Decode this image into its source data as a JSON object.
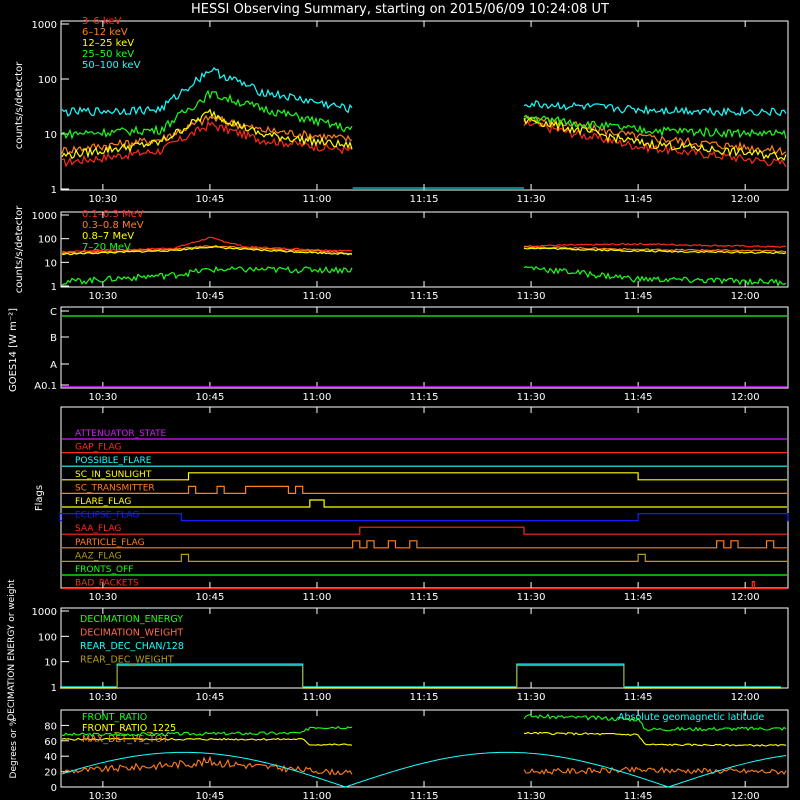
{
  "title": "HESSI Observing Summary, starting on 2015/06/09 10:24:08 UT",
  "colors": {
    "background": "#000000",
    "axes": "#ffffff",
    "red": "#ff2a1a",
    "orange": "#ff7f1a",
    "yellow": "#ffff00",
    "green": "#1aff1a",
    "cyan": "#1affff",
    "blue": "#1a1aff",
    "magenta": "#d21aff",
    "olive": "#b49b1a",
    "salmon": "#ff6a4a"
  },
  "time_ticks": [
    "10:30",
    "10:45",
    "11:00",
    "11:15",
    "11:30",
    "11:45",
    "12:00"
  ],
  "chart_data": [
    {
      "type": "line",
      "name": "panel-low-energy",
      "ylabel": "counts/s/detector",
      "yscale": "log",
      "ylim": [
        1,
        1000
      ],
      "ytick_labels": [
        "1",
        "10",
        "100",
        "1000"
      ],
      "legend_placement": "top-left",
      "series": [
        {
          "name": "3–6 keV",
          "color": "red",
          "x": [
            "10:24",
            "10:38",
            "10:45",
            "10:52",
            "11:05",
            "11:30",
            "11:45",
            "12:05"
          ],
          "y": [
            3,
            5,
            15,
            8,
            5,
            15,
            6,
            3
          ]
        },
        {
          "name": "6–12 keV",
          "color": "orange",
          "x": [
            "10:24",
            "10:38",
            "10:45",
            "10:52",
            "11:05",
            "11:30",
            "11:45",
            "12:05"
          ],
          "y": [
            5,
            8,
            20,
            12,
            8,
            20,
            9,
            5
          ]
        },
        {
          "name": "12–25 keV",
          "color": "yellow",
          "x": [
            "10:24",
            "10:38",
            "10:45",
            "10:52",
            "11:05",
            "11:30",
            "11:45",
            "12:05"
          ],
          "y": [
            4,
            7,
            25,
            10,
            6,
            18,
            7,
            4
          ]
        },
        {
          "name": "25–50 keV",
          "color": "green",
          "x": [
            "10:24",
            "10:38",
            "10:45",
            "10:52",
            "11:05",
            "11:30",
            "11:45",
            "12:05"
          ],
          "y": [
            10,
            12,
            55,
            30,
            12,
            20,
            12,
            10
          ]
        },
        {
          "name": "50–100 keV",
          "color": "cyan",
          "x": [
            "10:24",
            "10:38",
            "10:45",
            "10:52",
            "11:05",
            "11:30",
            "11:45",
            "12:05"
          ],
          "y": [
            25,
            28,
            150,
            60,
            28,
            35,
            28,
            25
          ]
        }
      ]
    },
    {
      "type": "line",
      "name": "panel-high-energy",
      "ylabel": "counts/s/detector",
      "yscale": "log",
      "ylim": [
        1,
        1000
      ],
      "ytick_labels": [
        "1",
        "10",
        "100",
        "1000"
      ],
      "legend_placement": "top-left",
      "series": [
        {
          "name": "0.1–0.3 MeV",
          "color": "red",
          "x": [
            "10:24",
            "10:40",
            "10:45",
            "10:50",
            "11:05",
            "11:30",
            "11:45",
            "12:05"
          ],
          "y": [
            28,
            40,
            110,
            45,
            30,
            50,
            60,
            45
          ]
        },
        {
          "name": "0.3–0.8 MeV",
          "color": "orange",
          "x": [
            "10:24",
            "10:40",
            "10:45",
            "10:50",
            "11:05",
            "11:30",
            "11:45",
            "12:05"
          ],
          "y": [
            25,
            35,
            50,
            40,
            25,
            45,
            35,
            30
          ]
        },
        {
          "name": "0.8–7 MeV",
          "color": "yellow",
          "x": [
            "10:24",
            "10:40",
            "10:45",
            "10:50",
            "11:05",
            "11:30",
            "11:45",
            "12:05"
          ],
          "y": [
            22,
            32,
            45,
            35,
            22,
            40,
            30,
            25
          ]
        },
        {
          "name": "7–20 MeV",
          "color": "green",
          "x": [
            "10:24",
            "10:40",
            "10:45",
            "10:50",
            "11:05",
            "11:30",
            "11:45",
            "12:05"
          ],
          "y": [
            1.5,
            3,
            5,
            5,
            5,
            6,
            2,
            1.5
          ]
        }
      ]
    },
    {
      "type": "line",
      "name": "panel-goes",
      "ylabel": "GOES14 [W m⁻²]",
      "ytick_labels": [
        "A0.1",
        "A",
        "B",
        "C"
      ],
      "series": [
        {
          "name": "GOES14",
          "color": "green",
          "x": [
            "10:24",
            "12:05"
          ],
          "y": [
            "C",
            "C"
          ]
        }
      ]
    },
    {
      "type": "line",
      "name": "panel-flags",
      "ylabel": "Flags",
      "series": [
        {
          "name": "ATTENUATOR_STATE",
          "color": "magenta"
        },
        {
          "name": "GAP_FLAG",
          "color": "red"
        },
        {
          "name": "POSSIBLE_FLARE",
          "color": "cyan"
        },
        {
          "name": "SC_IN_SUNLIGHT",
          "color": "yellow"
        },
        {
          "name": "SC_TRANSMITTER",
          "color": "orange"
        },
        {
          "name": "FLARE_FLAG",
          "color": "yellow"
        },
        {
          "name": "ECLIPSE_FLAG",
          "color": "blue"
        },
        {
          "name": "SAA_FLAG",
          "color": "red"
        },
        {
          "name": "PARTICLE_FLAG",
          "color": "orange"
        },
        {
          "name": "AAZ_FLAG",
          "color": "olive"
        },
        {
          "name": "FRONTS_OFF",
          "color": "green"
        },
        {
          "name": "BAD_PACKETS",
          "color": "red"
        }
      ]
    },
    {
      "type": "line",
      "name": "panel-decimation",
      "ylabel": "DECIMATION ENERGY or weight",
      "yscale": "log",
      "ylim": [
        1,
        1000
      ],
      "ytick_labels": [
        "1",
        "10",
        "100",
        "1000"
      ],
      "legend_placement": "top-left",
      "series": [
        {
          "name": "DECIMATION_ENERGY",
          "color": "green"
        },
        {
          "name": "DECIMATION_WEIGHT",
          "color": "salmon"
        },
        {
          "name": "REAR_DEC_CHAN/128",
          "color": "cyan",
          "x": [
            "10:24",
            "10:32",
            "10:32",
            "10:58",
            "10:58",
            "11:28",
            "11:28",
            "11:43",
            "11:43",
            "12:05"
          ],
          "y": [
            1,
            1,
            8,
            8,
            1,
            1,
            8,
            8,
            1,
            1
          ]
        },
        {
          "name": "REAR_DEC_WEIGHT",
          "color": "olive"
        }
      ]
    },
    {
      "type": "line",
      "name": "panel-ratios",
      "ylabel": "Degrees or %",
      "ylim": [
        0,
        100
      ],
      "ytick_labels": [
        "0",
        "20",
        "40",
        "60",
        "80"
      ],
      "legend_placement": "top-left",
      "series": [
        {
          "name": "FRONT_RATIO",
          "color": "green"
        },
        {
          "name": "FRONT_RATIO_1225",
          "color": "yellow"
        },
        {
          "name": "MAX_DET_VS_TOT",
          "color": "orange"
        },
        {
          "name": "Absolute geomagnetic latitude",
          "color": "cyan"
        }
      ]
    }
  ]
}
